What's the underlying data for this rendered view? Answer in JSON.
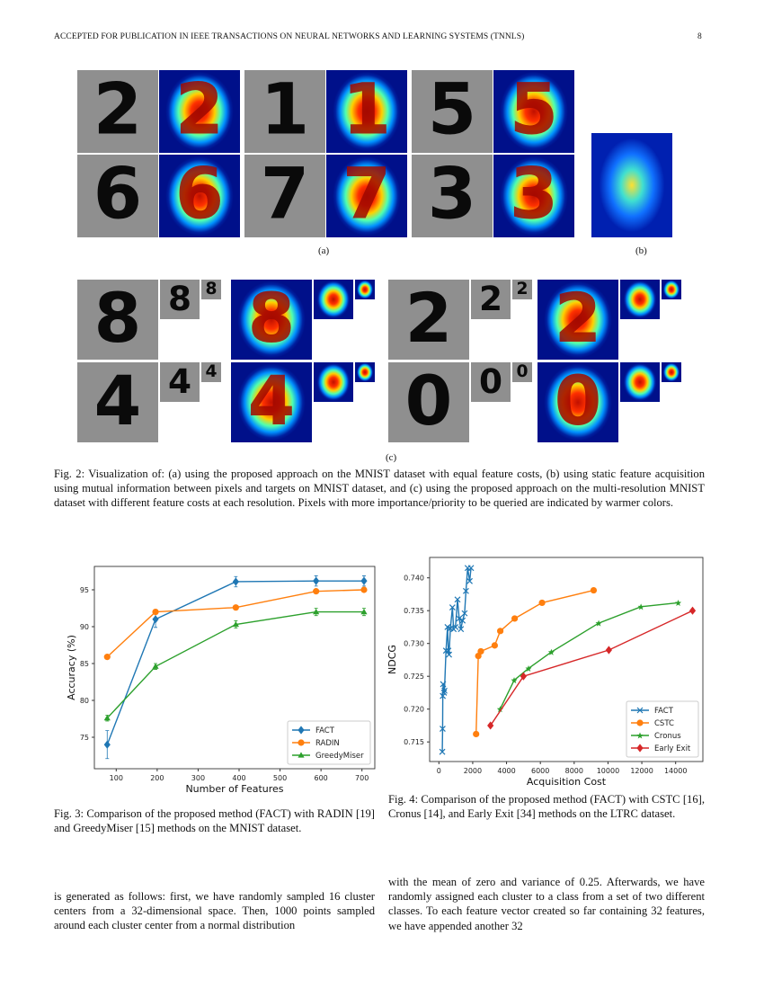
{
  "header": {
    "title": "ACCEPTED FOR PUBLICATION IN IEEE TRANSACTIONS ON NEURAL NETWORKS AND LEARNING SYSTEMS (TNNLS)",
    "page_number": "8"
  },
  "fig2": {
    "a_digits": [
      "2",
      "1",
      "5",
      "6",
      "7",
      "3"
    ],
    "c_digits": [
      "8",
      "2",
      "4",
      "0"
    ],
    "label_a": "(a)",
    "label_b": "(b)",
    "label_c": "(c)",
    "caption": "Fig. 2: Visualization of: (a) using the proposed approach on the MNIST dataset with equal feature costs, (b) using static feature acquisition using mutual information between pixels and targets on MNIST dataset, and (c) using the proposed approach on the multi-resolution MNIST dataset with different feature costs at each resolution. Pixels with more importance/priority to be queried are indicated by warmer colors."
  },
  "fig3": {
    "caption": "Fig. 3: Comparison of the proposed method (FACT) with RADIN [19] and GreedyMiser [15] methods on the MNIST dataset."
  },
  "fig4": {
    "caption": "Fig. 4: Comparison of the proposed method (FACT) with CSTC [16], Cronus [14], and Early Exit [34] methods on the LTRC dataset."
  },
  "body": {
    "left": "is generated as follows: first, we have randomly sampled 16 cluster centers from a 32-dimensional space. Then, 1000 points sampled around each cluster center from a normal distribution",
    "right": "with the mean of zero and variance of 0.25. Afterwards, we have randomly assigned each cluster to a class from a set of two different classes. To each feature vector created so far containing 32 features, we have appended another 32"
  },
  "chart_data": [
    {
      "type": "line",
      "xlabel": "Number of Features",
      "ylabel": "Accuracy (%)",
      "xlim": [
        50,
        730
      ],
      "ylim": [
        71,
        97.5
      ],
      "xticks": [
        100,
        200,
        300,
        400,
        500,
        600,
        700
      ],
      "yticks": [
        75,
        80,
        85,
        90,
        95
      ],
      "legend": "bottom-right",
      "grid": false,
      "series": [
        {
          "name": "FACT",
          "color": "#1f77b4",
          "marker": "diamond",
          "x": [
            78,
            196,
            392,
            588,
            705
          ],
          "y": [
            74,
            91,
            96.1,
            96.2,
            96.2
          ],
          "err": [
            1.9,
            1.1,
            0.7,
            0.7,
            0.7
          ]
        },
        {
          "name": "RADIN",
          "color": "#ff7f0e",
          "marker": "circle",
          "x": [
            78,
            196,
            392,
            588,
            705
          ],
          "y": [
            85.9,
            92,
            92.6,
            94.8,
            95
          ],
          "err": [
            0,
            0,
            0,
            0,
            0
          ]
        },
        {
          "name": "GreedyMiser",
          "color": "#2ca02c",
          "marker": "triangle",
          "x": [
            78,
            196,
            392,
            588,
            705
          ],
          "y": [
            77.6,
            84.6,
            90.3,
            92,
            92
          ],
          "err": [
            0.4,
            0.4,
            0.5,
            0.5,
            0.5
          ]
        }
      ]
    },
    {
      "type": "line",
      "xlabel": "Acquisition Cost",
      "ylabel": "NDCG",
      "xlim": [
        -800,
        15600
      ],
      "ylim": [
        0.7124,
        0.7422
      ],
      "xticks": [
        0,
        2000,
        4000,
        6000,
        8000,
        10000,
        12000,
        14000
      ],
      "yticks": [
        0.715,
        0.72,
        0.725,
        0.73,
        0.735,
        0.74
      ],
      "legend": "bottom-right",
      "grid": false,
      "series": [
        {
          "name": "FACT",
          "color": "#1f77b4",
          "marker": "x",
          "x": [
            200,
            220,
            230,
            250,
            300,
            330,
            420,
            510,
            560,
            600,
            680,
            800,
            870,
            980,
            1100,
            1200,
            1300,
            1400,
            1520,
            1600,
            1700,
            1820,
            1900
          ],
          "y": [
            0.7135,
            0.717,
            0.722,
            0.7238,
            0.7225,
            0.7228,
            0.7289,
            0.7325,
            0.7289,
            0.7283,
            0.7323,
            0.7355,
            0.7322,
            0.7325,
            0.7367,
            0.7338,
            0.7322,
            0.7335,
            0.7346,
            0.738,
            0.7415,
            0.7395,
            0.7415
          ]
        },
        {
          "name": "CSTC",
          "color": "#ff7f0e",
          "marker": "circle",
          "x": [
            2200,
            2330,
            2480,
            3300,
            3630,
            4480,
            6100,
            9150
          ],
          "y": [
            0.7162,
            0.7281,
            0.7288,
            0.7297,
            0.7319,
            0.7338,
            0.7362,
            0.7381
          ]
        },
        {
          "name": "Cronus",
          "color": "#2ca02c",
          "marker": "star",
          "x": [
            3620,
            4450,
            5300,
            6650,
            9450,
            11950,
            14150
          ],
          "y": [
            0.72,
            0.7244,
            0.7262,
            0.7287,
            0.7331,
            0.7356,
            0.7362
          ]
        },
        {
          "name": "Early Exit",
          "color": "#d62728",
          "marker": "diamond",
          "x": [
            3050,
            5000,
            10050,
            15000
          ],
          "y": [
            0.7175,
            0.725,
            0.729,
            0.735
          ]
        }
      ]
    }
  ]
}
